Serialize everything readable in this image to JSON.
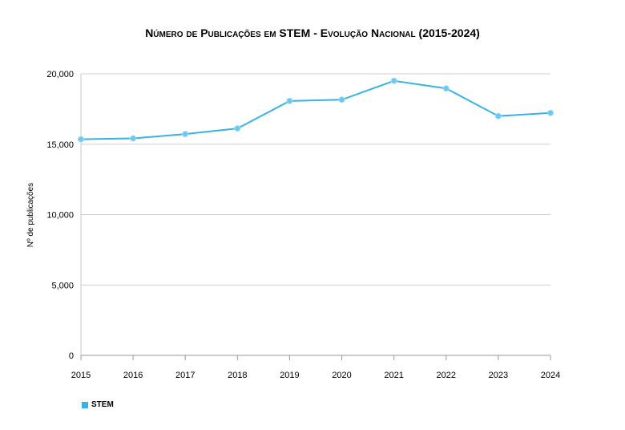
{
  "chart_data": {
    "type": "line",
    "title": "Número de Publicações em STEM - Evolução Nacional (2015-2024)",
    "xlabel": "",
    "ylabel": "Nº de publicações",
    "categories": [
      "2015",
      "2016",
      "2017",
      "2018",
      "2019",
      "2020",
      "2021",
      "2022",
      "2023",
      "2024"
    ],
    "series": [
      {
        "name": "STEM",
        "color": "#36b3e6",
        "values": [
          15350,
          15410,
          15720,
          16120,
          18070,
          18160,
          19500,
          18960,
          17000,
          17220
        ]
      }
    ],
    "ylim": [
      0,
      20000
    ],
    "yticks": [
      0,
      5000,
      10000,
      15000,
      20000
    ],
    "ytick_labels": [
      "0",
      "5,000",
      "10,000",
      "15,000",
      "20,000"
    ],
    "grid": true,
    "legend_position": "bottom-left"
  }
}
